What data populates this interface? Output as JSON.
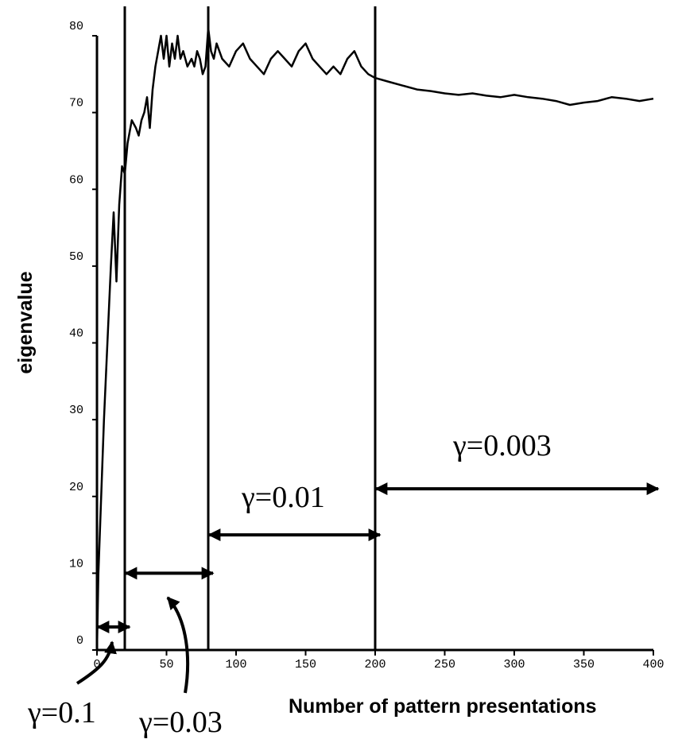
{
  "chart_data": {
    "type": "line",
    "title": "",
    "xlabel": "Number of pattern presentations",
    "ylabel": "eigenvalue",
    "xlim": [
      0,
      400
    ],
    "ylim": [
      0,
      80
    ],
    "x_ticks": [
      "0",
      "50",
      "100",
      "150",
      "200",
      "250",
      "300",
      "350",
      "400"
    ],
    "y_ticks": [
      "0",
      "10",
      "20",
      "30",
      "40",
      "50",
      "60",
      "70",
      "80"
    ],
    "grid": false,
    "line_color": "#000000",
    "series": [
      {
        "x": [
          0,
          1,
          3,
          5,
          8,
          10,
          12,
          14,
          16,
          18,
          20,
          22,
          25,
          28,
          30,
          32,
          34,
          36,
          38,
          40,
          42,
          44,
          46,
          48,
          50,
          52,
          54,
          56,
          58,
          60,
          62,
          65,
          68,
          70,
          72,
          74,
          76,
          78,
          80,
          82,
          84,
          86,
          88,
          90,
          95,
          100,
          105,
          110,
          115,
          120,
          125,
          130,
          135,
          140,
          145,
          150,
          155,
          160,
          165,
          170,
          175,
          180,
          185,
          190,
          195,
          200,
          210,
          220,
          230,
          240,
          250,
          260,
          270,
          280,
          290,
          300,
          310,
          320,
          330,
          340,
          350,
          360,
          370,
          380,
          390,
          400
        ],
        "y": [
          0,
          10,
          20,
          30,
          42,
          50,
          57,
          48,
          58,
          63,
          62,
          66,
          69,
          68,
          67,
          69,
          70,
          72,
          68,
          73,
          76,
          78,
          80,
          77,
          80,
          76,
          79,
          77,
          80,
          77,
          78,
          76,
          77,
          76,
          78,
          77,
          75,
          76,
          81,
          78,
          77,
          79,
          78,
          77,
          76,
          78,
          79,
          77,
          76,
          75,
          77,
          78,
          77,
          76,
          78,
          79,
          77,
          76,
          75,
          76,
          75,
          77,
          78,
          76,
          75,
          74.5,
          74,
          73.5,
          73,
          72.8,
          72.5,
          72.3,
          72.5,
          72.2,
          72,
          72.3,
          72,
          71.8,
          71.5,
          71,
          71.3,
          71.5,
          72,
          71.8,
          71.5,
          71.8
        ]
      }
    ],
    "boundaries": [
      20,
      80,
      200
    ],
    "regions": [
      {
        "label": "γ=0.1",
        "from": 0,
        "to": 20,
        "arrow_y": 3
      },
      {
        "label": "γ=0.03",
        "from": 20,
        "to": 80,
        "arrow_y": 10
      },
      {
        "label": "γ=0.01",
        "from": 80,
        "to": 200,
        "arrow_y": 15
      },
      {
        "label": "γ=0.003",
        "from": 200,
        "to": 400,
        "arrow_y": 21
      }
    ]
  }
}
